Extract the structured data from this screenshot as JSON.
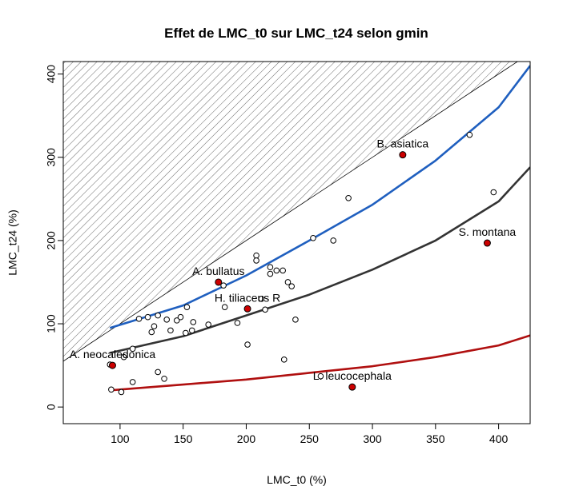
{
  "chart_data": {
    "type": "scatter",
    "title": "Effet de LMC_t0 sur LMC_t24 selon gmin",
    "xlabel": "LMC_t0 (%)",
    "ylabel": "LMC_t24 (%)",
    "xlim": [
      55,
      425
    ],
    "ylim": [
      -20,
      415
    ],
    "x_ticks": [
      100,
      150,
      200,
      250,
      300,
      350,
      400
    ],
    "y_ticks": [
      0,
      100,
      200,
      300,
      400
    ],
    "hatched_region": "y > x",
    "points": [
      {
        "x": 92,
        "y": 51
      },
      {
        "x": 93,
        "y": 21
      },
      {
        "x": 101,
        "y": 18
      },
      {
        "x": 103,
        "y": 60
      },
      {
        "x": 110,
        "y": 30
      },
      {
        "x": 110,
        "y": 70
      },
      {
        "x": 115,
        "y": 106
      },
      {
        "x": 122,
        "y": 108
      },
      {
        "x": 125,
        "y": 90
      },
      {
        "x": 127,
        "y": 97
      },
      {
        "x": 130,
        "y": 110
      },
      {
        "x": 130,
        "y": 42
      },
      {
        "x": 135,
        "y": 34
      },
      {
        "x": 137,
        "y": 105
      },
      {
        "x": 140,
        "y": 92
      },
      {
        "x": 145,
        "y": 104
      },
      {
        "x": 148,
        "y": 108
      },
      {
        "x": 152,
        "y": 89
      },
      {
        "x": 153,
        "y": 120
      },
      {
        "x": 157,
        "y": 92
      },
      {
        "x": 158,
        "y": 102
      },
      {
        "x": 170,
        "y": 99
      },
      {
        "x": 182,
        "y": 146
      },
      {
        "x": 183,
        "y": 120
      },
      {
        "x": 193,
        "y": 101
      },
      {
        "x": 201,
        "y": 75
      },
      {
        "x": 208,
        "y": 182
      },
      {
        "x": 208,
        "y": 176
      },
      {
        "x": 212,
        "y": 130
      },
      {
        "x": 215,
        "y": 117
      },
      {
        "x": 219,
        "y": 168
      },
      {
        "x": 219,
        "y": 160
      },
      {
        "x": 224,
        "y": 164
      },
      {
        "x": 229,
        "y": 164
      },
      {
        "x": 230,
        "y": 57
      },
      {
        "x": 233,
        "y": 150
      },
      {
        "x": 236,
        "y": 145
      },
      {
        "x": 239,
        "y": 105
      },
      {
        "x": 253,
        "y": 203
      },
      {
        "x": 259,
        "y": 37
      },
      {
        "x": 269,
        "y": 200
      },
      {
        "x": 281,
        "y": 251
      },
      {
        "x": 377,
        "y": 327
      },
      {
        "x": 396,
        "y": 258
      }
    ],
    "highlighted_points": [
      {
        "x": 94,
        "y": 50,
        "label": "A. neocaledonica"
      },
      {
        "x": 178,
        "y": 150,
        "label": "A. bullatus"
      },
      {
        "x": 201,
        "y": 118,
        "label": "H. tiliaceus R"
      },
      {
        "x": 284,
        "y": 24,
        "label": "L. leucocephala"
      },
      {
        "x": 324,
        "y": 303,
        "label": "B. asiatica"
      },
      {
        "x": 391,
        "y": 197,
        "label": "S. montana"
      }
    ],
    "curves": [
      {
        "color": "#1f5fbf",
        "x": [
          92,
          150,
          200,
          250,
          300,
          350,
          400,
          425
        ],
        "y": [
          95,
          122,
          158,
          200,
          243,
          296,
          360,
          410
        ]
      },
      {
        "color": "#333333",
        "x": [
          92,
          150,
          200,
          250,
          300,
          350,
          400,
          425
        ],
        "y": [
          65,
          85,
          110,
          135,
          165,
          200,
          247,
          288
        ]
      },
      {
        "color": "#b01010",
        "x": [
          92,
          150,
          200,
          250,
          300,
          350,
          400,
          425
        ],
        "y": [
          20,
          27,
          33,
          41,
          49,
          60,
          74,
          86
        ]
      }
    ],
    "colors": {
      "highlight": "#cc0000",
      "hatch": "#555555"
    }
  }
}
